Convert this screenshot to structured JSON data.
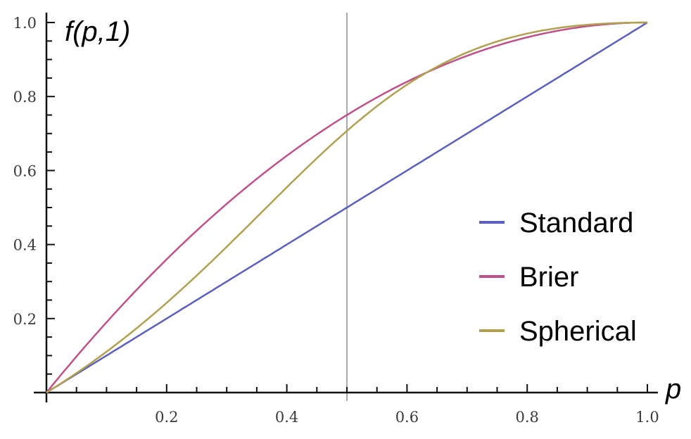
{
  "chart_data": {
    "type": "line",
    "title": "",
    "xlabel": "p",
    "ylabel": "f(p,1)",
    "xlim": [
      0,
      1
    ],
    "ylim": [
      0,
      1
    ],
    "x_ticks": [
      0.2,
      0.4,
      0.6,
      0.8,
      1.0
    ],
    "x_tick_labels": [
      "0.2",
      "0.4",
      "0.6",
      "0.8",
      "1.0"
    ],
    "y_ticks": [
      0.2,
      0.4,
      0.6,
      0.8,
      1.0
    ],
    "y_tick_labels": [
      "0.2",
      "0.4",
      "0.6",
      "0.8",
      "1.0"
    ],
    "minor_tick_step": 0.05,
    "grid": false,
    "vertical_reference_line": {
      "x": 0.5,
      "color": "#aaaaaa"
    },
    "legend_position": "right-middle",
    "x": [
      0,
      0.1,
      0.2,
      0.3,
      0.4,
      0.5,
      0.6,
      0.7,
      0.8,
      0.9,
      1.0
    ],
    "series": [
      {
        "name": "Standard",
        "color": "#5a5fc0",
        "values": [
          0,
          0.1,
          0.2,
          0.3,
          0.4,
          0.5,
          0.6,
          0.7,
          0.8,
          0.9,
          1.0
        ]
      },
      {
        "name": "Brier",
        "color": "#c0508a",
        "values": [
          0,
          0.19,
          0.36,
          0.51,
          0.64,
          0.75,
          0.84,
          0.91,
          0.96,
          0.99,
          1.0
        ]
      },
      {
        "name": "Spherical",
        "color": "#b0a050",
        "values": [
          0,
          0.11,
          0.243,
          0.394,
          0.555,
          0.707,
          0.832,
          0.919,
          0.97,
          0.994,
          1.0
        ]
      }
    ]
  }
}
